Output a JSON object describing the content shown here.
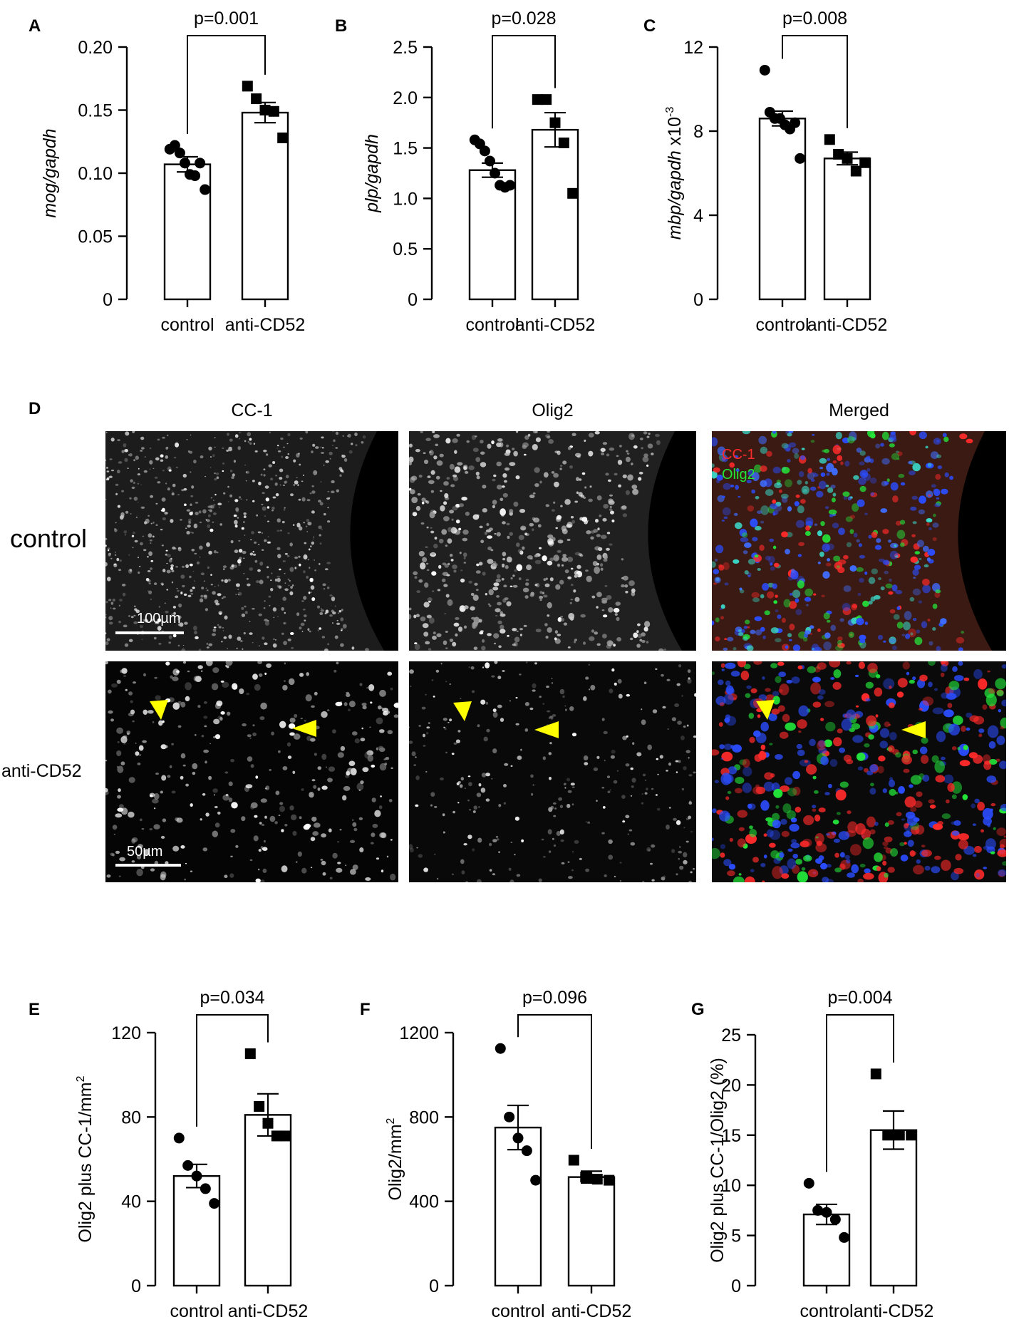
{
  "chart_data": [
    {
      "panel": "A",
      "type": "bar",
      "categories": [
        "control",
        "anti-CD52"
      ],
      "ylabel": "mog/gapdh",
      "ylabel_italic": true,
      "ylabel_suffix": "",
      "yticks": [
        "0",
        "0.05",
        "0.10",
        "0.15",
        "0.20"
      ],
      "ylim": [
        0,
        0.2
      ],
      "pvalue": "p=0.001",
      "means": [
        0.107,
        0.148
      ],
      "sem": [
        0.006,
        0.008
      ],
      "points": [
        [
          0.119,
          0.122,
          0.116,
          0.108,
          0.099,
          0.098,
          0.108,
          0.087
        ],
        [
          0.169,
          0.159,
          0.15,
          0.149,
          0.128
        ]
      ],
      "markers": [
        "circle",
        "square"
      ]
    },
    {
      "panel": "B",
      "type": "bar",
      "categories": [
        "control",
        "anti-CD52"
      ],
      "ylabel": "plp/gapdh",
      "ylabel_italic": true,
      "ylabel_suffix": "",
      "yticks": [
        "0",
        "0.5",
        "1.0",
        "1.5",
        "2.0",
        "2.5"
      ],
      "ylim": [
        0,
        2.5
      ],
      "pvalue": "p=0.028",
      "means": [
        1.28,
        1.68
      ],
      "sem": [
        0.07,
        0.17
      ],
      "points": [
        [
          1.58,
          1.54,
          1.47,
          1.37,
          1.25,
          1.13,
          1.11,
          1.13
        ],
        [
          1.98,
          1.98,
          1.75,
          1.55,
          1.05
        ]
      ],
      "markers": [
        "circle",
        "square"
      ]
    },
    {
      "panel": "C",
      "type": "bar",
      "categories": [
        "control",
        "anti-CD52"
      ],
      "ylabel": "mbp/gapdh",
      "ylabel_italic": true,
      "ylabel_suffix": " x10",
      "ylabel_sup": "-3",
      "yticks": [
        "0",
        "4",
        "8",
        "12"
      ],
      "ylim": [
        0,
        12
      ],
      "pvalue": "p=0.008",
      "means": [
        8.6,
        6.7
      ],
      "sem": [
        0.35,
        0.3
      ],
      "points": [
        [
          10.9,
          8.9,
          8.6,
          8.6,
          8.3,
          8.1,
          8.4,
          6.7
        ],
        [
          7.6,
          6.9,
          6.7,
          6.1,
          6.5
        ]
      ],
      "markers": [
        "circle",
        "square"
      ]
    },
    {
      "panel": "E",
      "type": "bar",
      "categories": [
        "control",
        "anti-CD52"
      ],
      "ylabel": "Olig2 plus CC-1/mm",
      "ylabel_italic": false,
      "ylabel_suffix": "",
      "ylabel_sup": "2",
      "yticks": [
        "0",
        "40",
        "80",
        "120"
      ],
      "ylim": [
        0,
        120
      ],
      "pvalue": "p=0.034",
      "means": [
        52,
        81
      ],
      "sem": [
        5.5,
        10
      ],
      "points": [
        [
          70,
          57,
          52,
          46,
          39
        ],
        [
          110,
          85,
          77,
          71,
          71
        ]
      ],
      "markers": [
        "circle",
        "square"
      ]
    },
    {
      "panel": "F",
      "type": "bar",
      "categories": [
        "control",
        "anti-CD52"
      ],
      "ylabel": "Olig2/mm",
      "ylabel_italic": false,
      "ylabel_suffix": "",
      "ylabel_sup": "2",
      "yticks": [
        "0",
        "400",
        "800",
        "1200"
      ],
      "ylim": [
        0,
        1200
      ],
      "pvalue": "p=0.096",
      "means": [
        750,
        515
      ],
      "sem": [
        105,
        28
      ],
      "points": [
        [
          1125,
          800,
          700,
          640,
          500
        ],
        [
          595,
          515,
          505,
          500
        ]
      ],
      "markers": [
        "circle",
        "square"
      ]
    },
    {
      "panel": "G",
      "type": "bar",
      "categories": [
        "control",
        "anti-CD52"
      ],
      "ylabel": "Olig2 plus CC-1/Olig2 (%)",
      "ylabel_italic": false,
      "ylabel_suffix": "",
      "yticks": [
        "0",
        "5",
        "10",
        "15",
        "20",
        "25"
      ],
      "ylim": [
        0,
        25
      ],
      "pvalue": "p=0.004",
      "means": [
        7.1,
        15.5
      ],
      "sem": [
        1.0,
        1.9
      ],
      "points": [
        [
          10.2,
          7.5,
          7.3,
          6.6,
          4.8
        ],
        [
          21.1,
          15.0,
          15.0,
          15.0
        ]
      ],
      "markers": [
        "circle",
        "square"
      ]
    }
  ],
  "panel_d": {
    "panel": "D",
    "columns": [
      "CC-1",
      "Olig2",
      "Merged"
    ],
    "rows": [
      "control",
      "anti-CD52"
    ],
    "scale_bars": [
      "100µm",
      "50µm"
    ],
    "merged_legend": [
      "CC-1",
      "Olig2"
    ],
    "colors": {
      "cc1": "#ff2a2a",
      "olig2": "#23e63a",
      "nucleus": "#2b4dff",
      "arrowhead": "#ffff00"
    }
  }
}
